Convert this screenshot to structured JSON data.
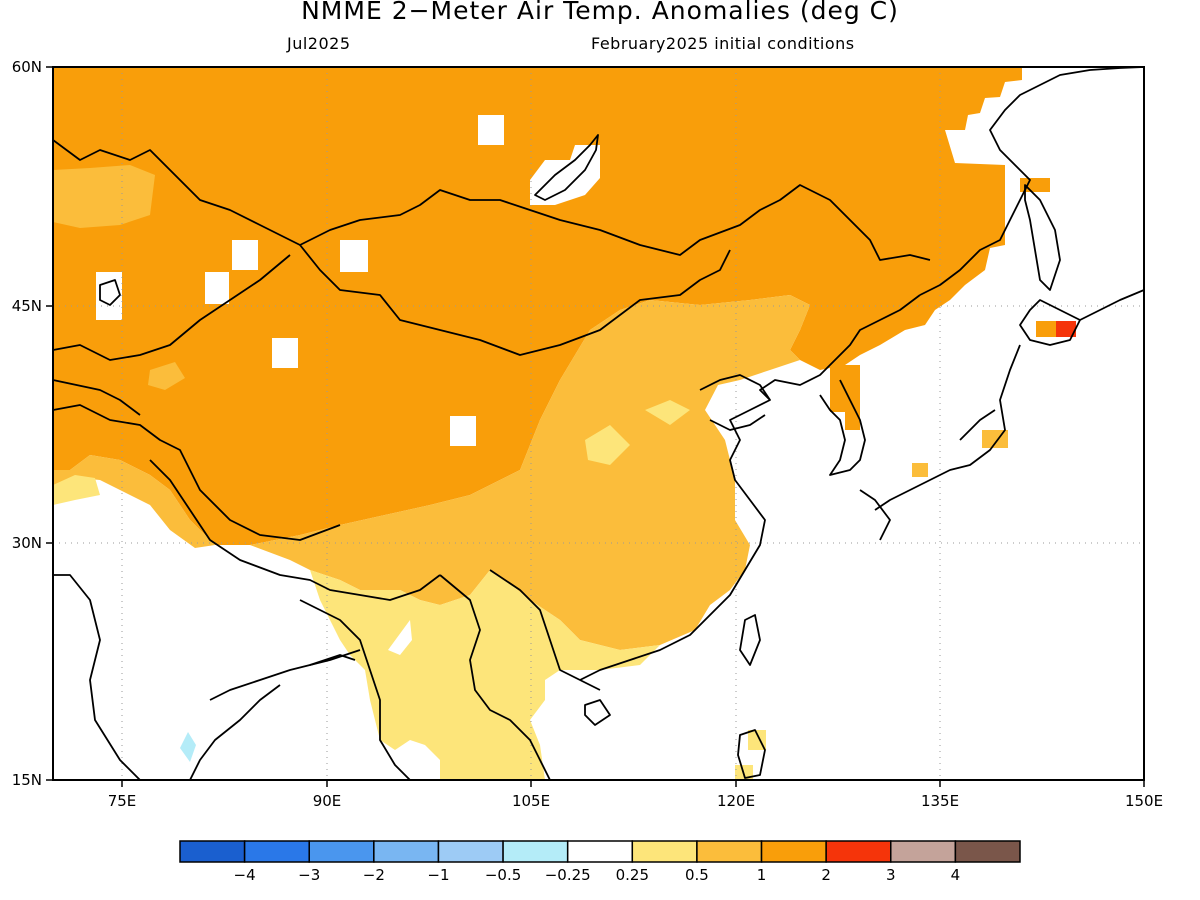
{
  "header": {
    "title": "NMME 2−Meter Air Temp. Anomalies (deg C)",
    "valid_month": "Jul2025",
    "init_conditions": "February2025 initial conditions"
  },
  "map": {
    "lon_range": [
      70,
      150
    ],
    "lat_range": [
      15,
      60
    ],
    "lat_ticks": [
      {
        "value": 60,
        "label": "60N"
      },
      {
        "value": 45,
        "label": "45N"
      },
      {
        "value": 30,
        "label": "30N"
      },
      {
        "value": 15,
        "label": "15N"
      }
    ],
    "lon_ticks": [
      {
        "value": 75,
        "label": "75E"
      },
      {
        "value": 90,
        "label": "90E"
      },
      {
        "value": 105,
        "label": "105E"
      },
      {
        "value": 120,
        "label": "120E"
      },
      {
        "value": 135,
        "label": "135E"
      },
      {
        "value": 150,
        "label": "150E"
      }
    ],
    "grid": "dotted"
  },
  "colorbar": {
    "colors": [
      "#1a5fcf",
      "#2a78e8",
      "#4a96ee",
      "#79b6f2",
      "#9dcbf5",
      "#b4ecf8",
      "#ffffff",
      "#fde57a",
      "#fbbd3b",
      "#f99e0a",
      "#f5340a",
      "#c4a39a",
      "#7a564a"
    ],
    "labels": [
      "−4",
      "−3",
      "−2",
      "−1",
      "−0.5",
      "−0.25",
      "0.25",
      "0.5",
      "1",
      "2",
      "3",
      "4"
    ]
  }
}
